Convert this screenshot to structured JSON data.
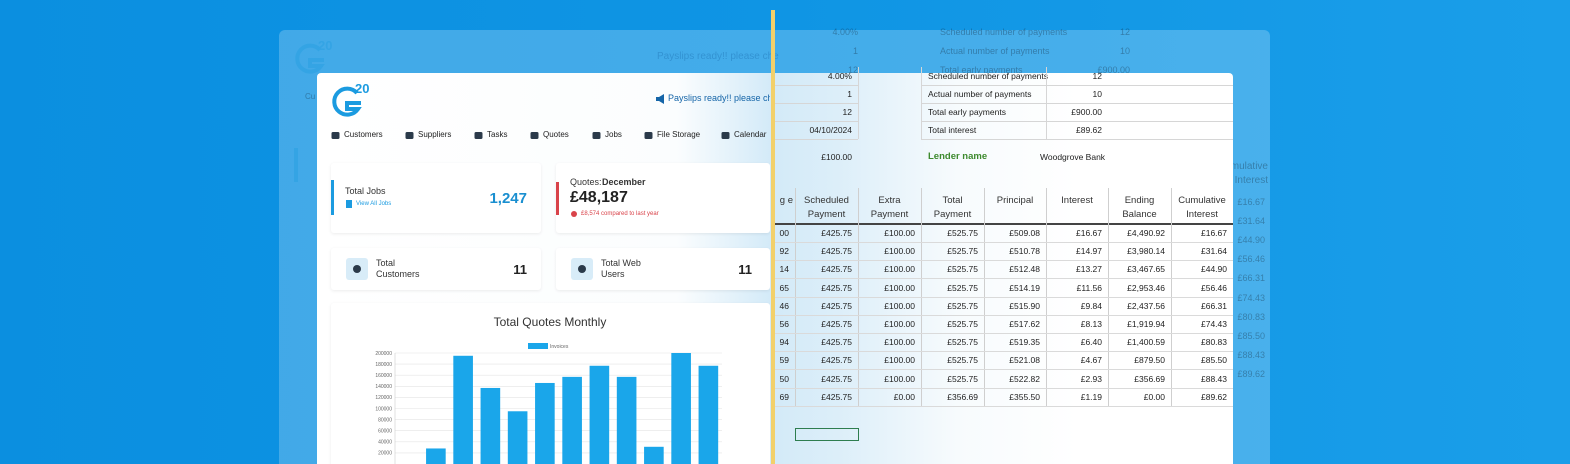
{
  "logo": "20",
  "notice": "Payslips ready!! please che",
  "nav": [
    "Customers",
    "Suppliers",
    "Tasks",
    "Quotes",
    "Jobs",
    "File Storage",
    "Calendar"
  ],
  "cards": {
    "jobs": {
      "label": "Total Jobs",
      "link": "View All Jobs",
      "value": "1,247"
    },
    "quotes": {
      "label": "Quotes:",
      "month": "December",
      "value": "£48,187",
      "change": "£8,574 compared to last year"
    },
    "customers": {
      "label": "Total Customers",
      "value": "11"
    },
    "web_users": {
      "label": "Total Web Users",
      "value": "11"
    }
  },
  "chart": {
    "type": "bar",
    "title": "Total Quotes Monthly",
    "legend": "Invoices",
    "color": "#1aa6ea",
    "values": [
      0,
      28000,
      195000,
      137000,
      95000,
      146000,
      157000,
      177000,
      157000,
      31000,
      200000,
      177000
    ],
    "ylim": [
      0,
      200000
    ],
    "yticks": [
      20000,
      40000,
      60000,
      80000,
      100000,
      120000,
      140000,
      160000,
      180000,
      200000
    ],
    "grid": true
  },
  "loan": {
    "inputs": [
      "4.00%",
      "1",
      "12",
      "04/10/2024"
    ],
    "extra": "£100.00",
    "summary": [
      [
        "Scheduled number of payments",
        "12"
      ],
      [
        "Actual number of payments",
        "10"
      ],
      [
        "Total early payments",
        "£900.00"
      ],
      [
        "Total interest",
        "£89.62"
      ]
    ],
    "lender": {
      "label": "Lender name",
      "value": "Woodgrove Bank"
    },
    "table": {
      "header": [
        "g e",
        "Scheduled Payment",
        "Extra Payment",
        "Total Payment",
        "Principal",
        "Interest",
        "Ending Balance",
        "Cumulative Interest"
      ],
      "rows": [
        [
          "00",
          "£425.75",
          "£100.00",
          "£525.75",
          "£509.08",
          "£16.67",
          "£4,490.92",
          "£16.67"
        ],
        [
          "92",
          "£425.75",
          "£100.00",
          "£525.75",
          "£510.78",
          "£14.97",
          "£3,980.14",
          "£31.64"
        ],
        [
          "14",
          "£425.75",
          "£100.00",
          "£525.75",
          "£512.48",
          "£13.27",
          "£3,467.65",
          "£44.90"
        ],
        [
          "65",
          "£425.75",
          "£100.00",
          "£525.75",
          "£514.19",
          "£11.56",
          "£2,953.46",
          "£56.46"
        ],
        [
          "46",
          "£425.75",
          "£100.00",
          "£525.75",
          "£515.90",
          "£9.84",
          "£2,437.56",
          "£66.31"
        ],
        [
          "56",
          "£425.75",
          "£100.00",
          "£525.75",
          "£517.62",
          "£8.13",
          "£1,919.94",
          "£74.43"
        ],
        [
          "94",
          "£425.75",
          "£100.00",
          "£525.75",
          "£519.35",
          "£6.40",
          "£1,400.59",
          "£80.83"
        ],
        [
          "59",
          "£425.75",
          "£100.00",
          "£525.75",
          "£521.08",
          "£4.67",
          "£879.50",
          "£85.50"
        ],
        [
          "50",
          "£425.75",
          "£100.00",
          "£525.75",
          "£522.82",
          "£2.93",
          "£356.69",
          "£88.43"
        ],
        [
          "69",
          "£425.75",
          "£0.00",
          "£356.69",
          "£355.50",
          "£1.19",
          "£0.00",
          "£89.62"
        ]
      ]
    }
  }
}
